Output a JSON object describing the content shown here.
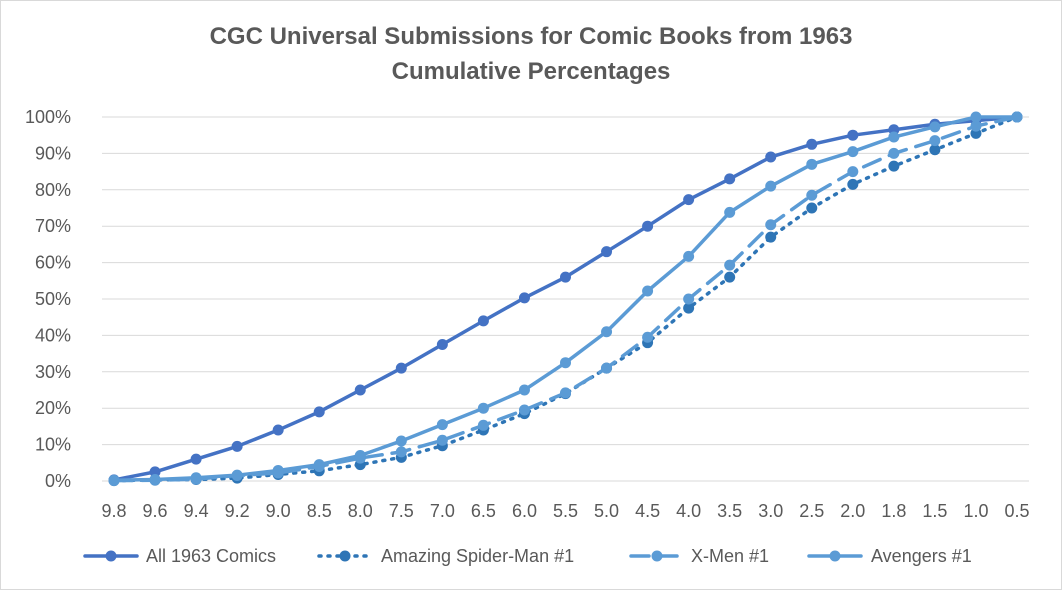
{
  "chart_data": {
    "type": "line",
    "title": "CGC Universal Submissions for Comic Books from 1963",
    "subtitle": "Cumulative Percentages",
    "xlabel": "",
    "ylabel": "",
    "categories": [
      "9.8",
      "9.6",
      "9.4",
      "9.2",
      "9.0",
      "8.5",
      "8.0",
      "7.5",
      "7.0",
      "6.5",
      "6.0",
      "5.5",
      "5.0",
      "4.5",
      "4.0",
      "3.5",
      "3.0",
      "2.5",
      "2.0",
      "1.8",
      "1.5",
      "1.0",
      "0.5"
    ],
    "y_ticks": [
      "0%",
      "10%",
      "20%",
      "30%",
      "40%",
      "50%",
      "60%",
      "70%",
      "80%",
      "90%",
      "100%"
    ],
    "ylim": [
      0,
      100
    ],
    "grid": true,
    "legend_position": "bottom",
    "series": [
      {
        "name": "All 1963 Comics",
        "color": "#4472C4",
        "line_style": "solid",
        "values": [
          0.3,
          2.5,
          6,
          9.5,
          14,
          19,
          25,
          31,
          37.5,
          44,
          50.3,
          56,
          63,
          70,
          77.3,
          83,
          89,
          92.5,
          95,
          96.5,
          98,
          99,
          100
        ]
      },
      {
        "name": "Amazing Spider-Man #1",
        "color": "#2E75B6",
        "line_style": "dotted",
        "values": [
          0.1,
          0.3,
          0.4,
          0.8,
          1.8,
          2.8,
          4.5,
          6.5,
          9.7,
          14,
          18.5,
          24,
          31,
          38,
          47.5,
          56,
          67,
          75,
          81.5,
          86.5,
          91,
          95.5,
          100
        ]
      },
      {
        "name": "X-Men #1",
        "color": "#5B9BD5",
        "line_style": "dashed",
        "values": [
          0.1,
          0.2,
          0.5,
          1.5,
          2.2,
          4,
          6.3,
          8,
          11.2,
          15.3,
          19.5,
          24.2,
          31,
          39.5,
          50,
          59.3,
          70.4,
          78.5,
          85,
          90,
          93.5,
          97.5,
          100
        ]
      },
      {
        "name": "Avengers #1",
        "color": "#5B9BD5",
        "line_style": "solid",
        "values": [
          0.2,
          0.4,
          0.9,
          1.6,
          2.9,
          4.5,
          7,
          11,
          15.5,
          20,
          25,
          32.5,
          41,
          52.2,
          61.7,
          73.8,
          81,
          87,
          90.5,
          94.5,
          97.3,
          100,
          100
        ]
      }
    ]
  }
}
